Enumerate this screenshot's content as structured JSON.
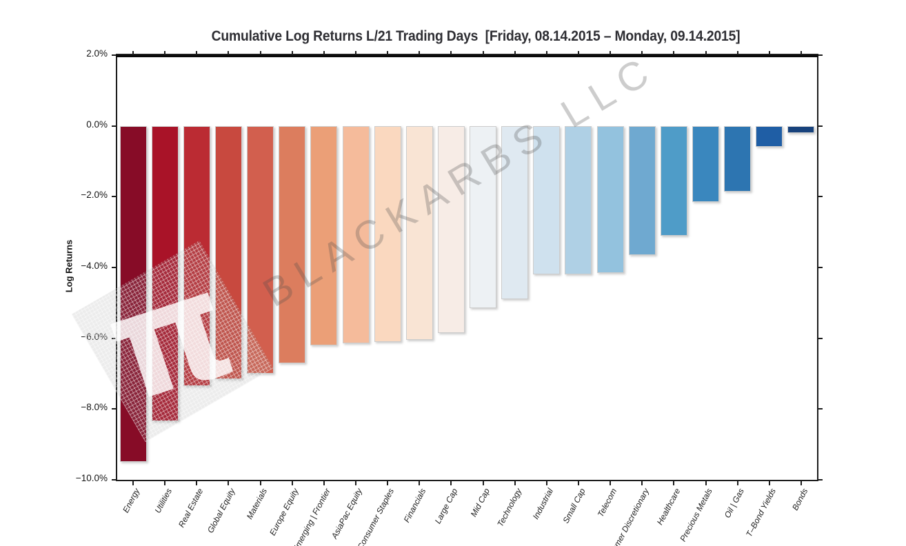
{
  "title": "Cumulative Log Returns L/21 Trading Days  [Friday, 08.14.2015 – Monday, 09.14.2015]",
  "y_axis": {
    "label": "Log Returns",
    "tick_labels": [
      "2.0%",
      "0.0%",
      "−2.0%",
      "−4.0%",
      "−6.0%",
      "−8.0%",
      "−10.0%"
    ],
    "tick_values": [
      2,
      0,
      -2,
      -4,
      -6,
      -8,
      -10
    ]
  },
  "watermark": {
    "text": "BLACKARBS LLC",
    "logo_glyph": "π"
  },
  "chart_data": {
    "type": "bar",
    "title": "Cumulative Log Returns L/21 Trading Days  [Friday, 08.14.2015 – Monday, 09.14.2015]",
    "xlabel": "",
    "ylabel": "Log Returns",
    "ylim": [
      -10,
      2
    ],
    "grid": false,
    "legend": null,
    "zero_line": true,
    "value_unit": "percent",
    "categories": [
      "Energy",
      "Utilities",
      "Real Estate",
      "Global Equity",
      "Materials",
      "Europe Equity",
      "Emerging | Frontier",
      "AsiaPac Equity",
      "Consumer Staples",
      "Financials",
      "Large Cap",
      "Mid Cap",
      "Technology",
      "Industrial",
      "Small Cap",
      "Telecom",
      "Consumer Discretionary",
      "Healthcare",
      "Precious Metals",
      "Oil | Gas",
      "T–Bond Yields",
      "Bonds"
    ],
    "values": [
      -9.5,
      -8.35,
      -7.35,
      -7.15,
      -7.0,
      -6.7,
      -6.2,
      -6.15,
      -6.1,
      -6.05,
      -5.85,
      -5.15,
      -4.9,
      -4.2,
      -4.2,
      -4.15,
      -3.65,
      -3.1,
      -2.15,
      -1.85,
      -0.6,
      -0.2
    ],
    "bar_colors": [
      "#870c27",
      "#a91328",
      "#bb2b33",
      "#c8493f",
      "#d25f4e",
      "#dc7d5e",
      "#eb9f77",
      "#f5bb9b",
      "#fad8bf",
      "#f9e4d4",
      "#f7ece6",
      "#edf1f4",
      "#dfe9f1",
      "#cfe1ee",
      "#afd0e5",
      "#93c2de",
      "#6fa9d0",
      "#4f9cc8",
      "#3a87be",
      "#2d75b1",
      "#1f5ea5",
      "#17427c"
    ]
  }
}
